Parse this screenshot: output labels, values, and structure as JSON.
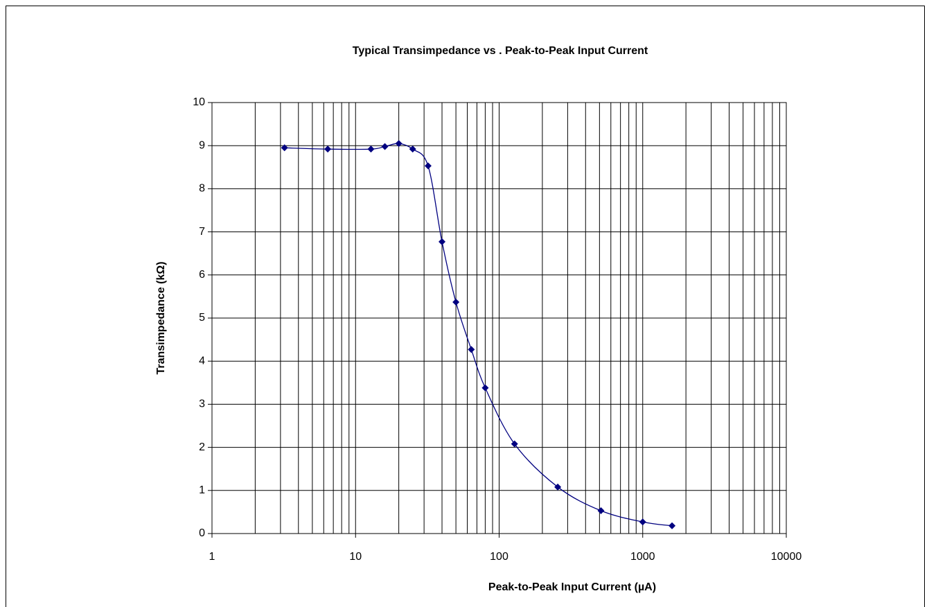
{
  "chart_data": {
    "type": "line",
    "title": "Typical Transimpedance vs . Peak-to-Peak Input Current",
    "x_label": "Peak-to-Peak Input Current  (µA)",
    "y_label": "Transimpedance (kΩ)",
    "x": [
      3.2,
      6.4,
      12.8,
      16,
      20,
      25,
      32,
      40,
      50,
      64,
      80,
      128,
      256,
      512,
      1000,
      1600
    ],
    "series": [
      {
        "color": "#000080",
        "values": [
          8.95,
          8.92,
          8.92,
          8.98,
          9.05,
          8.92,
          8.53,
          6.77,
          5.37,
          4.27,
          3.38,
          2.08,
          1.08,
          0.53,
          0.27,
          0.18
        ]
      }
    ],
    "x_log": true,
    "xlim": [
      1,
      10000
    ],
    "xticks": [
      1,
      10,
      100,
      1000,
      10000
    ],
    "ylim": [
      0,
      10
    ],
    "yticks": [
      0,
      1,
      2,
      3,
      4,
      5,
      6,
      7,
      8,
      9,
      10
    ],
    "grid": true
  }
}
